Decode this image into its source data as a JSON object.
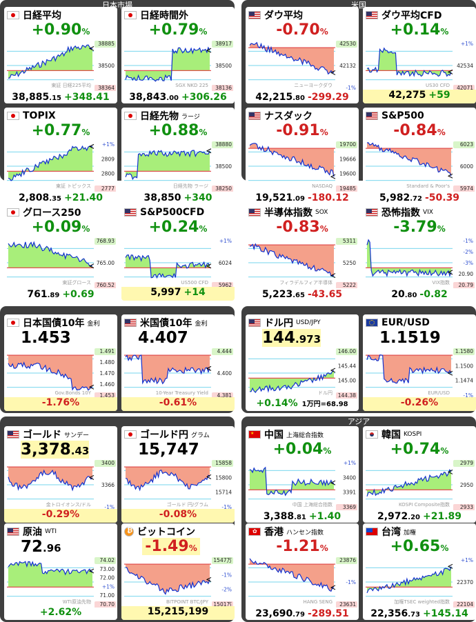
{
  "panels": [
    {
      "title": "日本市場"
    },
    {
      "title": "米国"
    },
    {
      "title": ""
    },
    {
      "title": ""
    },
    {
      "title": ""
    },
    {
      "title": "アジア"
    }
  ],
  "cards": [
    {
      "id": "nikkei",
      "flag": "jp",
      "name": "日経平均",
      "sub": "",
      "change": "+0.90",
      "unit": "%",
      "dir": "pos",
      "price_main": "38,885",
      "price_dec": ".15",
      "delta": "+348.41",
      "labels": [
        "38885",
        "38500",
        "38364"
      ],
      "watermark": "東証 日経225平均"
    },
    {
      "id": "nikkei-ah",
      "flag": "jp",
      "name": "日経時間外",
      "sub": "",
      "change": "+0.79",
      "unit": "%",
      "dir": "pos",
      "price_main": "38,843",
      "price_dec": ".00",
      "delta": "+306.26",
      "labels": [
        "38917",
        "38500",
        "38136"
      ],
      "watermark": "SGX NKD 225"
    },
    {
      "id": "dow",
      "flag": "us",
      "name": "ダウ平均",
      "sub": "",
      "change": "-0.70",
      "unit": "%",
      "dir": "neg",
      "price_main": "42,215",
      "price_dec": ".80",
      "delta": "-299.29",
      "labels": [
        "42530",
        "42132",
        "-1%"
      ],
      "watermark": "ニューヨークダウ"
    },
    {
      "id": "dow-cfd",
      "flag": "us",
      "name": "ダウ平均CFD",
      "sub": "",
      "change": "+0.14",
      "unit": "%",
      "dir": "pos",
      "price_main": "42,275",
      "price_dec": "",
      "delta": "+59",
      "labels": [
        "+1%",
        "42534",
        "42071"
      ],
      "watermark": "US30 CFD"
    },
    {
      "id": "topix",
      "flag": "jp",
      "name": "TOPIX",
      "sub": "",
      "change": "+0.77",
      "unit": "%",
      "dir": "pos",
      "price_main": "2,808",
      "price_dec": ".35",
      "delta": "+21.40",
      "labels": [
        "+1%",
        "2809",
        "2800",
        "2777"
      ],
      "watermark": "東証 トピックス"
    },
    {
      "id": "nikkei-fut",
      "flag": "jp",
      "name": "日経先物",
      "sub": "ラージ",
      "change": "+0.88",
      "unit": "%",
      "dir": "pos",
      "price_main": "38,850",
      "price_dec": "",
      "delta": "+340",
      "labels": [
        "38880",
        "38500",
        "38250"
      ],
      "watermark": "日経先物 ラージ"
    },
    {
      "id": "nasdaq",
      "flag": "us",
      "name": "ナスダック",
      "sub": "",
      "change": "-0.91",
      "unit": "%",
      "dir": "neg",
      "price_main": "19,521",
      "price_dec": ".09",
      "delta": "-180.12",
      "labels": [
        "19700",
        "19666",
        "19600",
        "19485"
      ],
      "watermark": "NASDAQ"
    },
    {
      "id": "sp500",
      "flag": "us",
      "name": "S&P500",
      "sub": "",
      "change": "-0.84",
      "unit": "%",
      "dir": "neg",
      "price_main": "5,982",
      "price_dec": ".72",
      "delta": "-50.39",
      "labels": [
        "6023",
        "6000",
        "5974"
      ],
      "watermark": "Standard & Poor's"
    },
    {
      "id": "growth",
      "flag": "jp",
      "name": "グロース250",
      "sub": "",
      "change": "+0.09",
      "unit": "%",
      "dir": "pos",
      "price_main": "761",
      "price_dec": ".89",
      "delta": "+0.69",
      "labels": [
        "768.93",
        "765.00",
        "760.52"
      ],
      "watermark": "東証グロース"
    },
    {
      "id": "sp500-cfd",
      "flag": "us",
      "name": "S&P500CFD",
      "sub": "",
      "change": "+0.24",
      "unit": "%",
      "dir": "pos",
      "price_main": "5,997",
      "price_dec": "",
      "delta": "+14",
      "labels": [
        "+1%",
        "6024",
        "5962"
      ],
      "watermark": "US500 CFD"
    },
    {
      "id": "sox",
      "flag": "us",
      "name": "半導体指数",
      "sub": "SOX",
      "change": "-0.83",
      "unit": "%",
      "dir": "neg",
      "price_main": "5,223",
      "price_dec": ".65",
      "delta": "-43.65",
      "labels": [
        "5311",
        "5250",
        "5222"
      ],
      "watermark": "フィラデルフィア半導体"
    },
    {
      "id": "vix",
      "flag": "us",
      "name": "恐怖指数",
      "sub": "VIX",
      "change": "-3.79",
      "unit": "%",
      "dir": "pos",
      "price_main": "20",
      "price_dec": ".80",
      "delta": "-0.82",
      "labels": [
        "-1%",
        "-2%",
        "-3%",
        "20.90",
        "20.79"
      ],
      "watermark": "VIX指数"
    },
    {
      "id": "jgb10",
      "flag": "jp",
      "name": "日本国債10年",
      "sub": "金利",
      "big": "1.453",
      "big_dec": "",
      "pct": "-1.76%",
      "dir": "neg",
      "labels": [
        "1.491",
        "1.480",
        "1.470",
        "1.460",
        "1.453"
      ],
      "watermark": "Gov.Bonds 10Y"
    },
    {
      "id": "ust10",
      "flag": "us",
      "name": "米国債10年",
      "sub": "金利",
      "big": "4.407",
      "big_dec": "",
      "pct": "-0.61%",
      "dir": "neg",
      "labels": [
        "4.444",
        "4.400",
        "4.381"
      ],
      "watermark": "10-Year Treasury Yield"
    },
    {
      "id": "usdjpy",
      "flag": "us",
      "name": "ドル円",
      "sub": "USD/JPY",
      "big": "144",
      "big_dec": ".973",
      "pct": "+0.14%",
      "dir": "pos",
      "note": "1万円=68.98",
      "labels": [
        "146.00",
        "145.44",
        "145.00",
        "144.38"
      ],
      "watermark": "ドル円"
    },
    {
      "id": "eurusd",
      "flag": "eu",
      "name": "EUR/USD",
      "sub": "",
      "big": "1.1519",
      "big_dec": "",
      "pct": "-0.26%",
      "dir": "neg",
      "labels": [
        "1.1580",
        "1.1500",
        "1.1474",
        "-1%"
      ],
      "watermark": "EUR/USD"
    },
    {
      "id": "gold",
      "flag": "us",
      "name": "ゴールド",
      "sub": "サンデー",
      "big": "3,378",
      "big_dec": ".43",
      "pct": "-0.29%",
      "dir": "neg",
      "labels": [
        "3400",
        "3366",
        "-1%"
      ],
      "watermark": "金トロイオンス/ドル"
    },
    {
      "id": "gold-jpy",
      "flag": "jp",
      "name": "ゴールド円",
      "sub": "グラム",
      "big": "15,747",
      "big_dec": "",
      "pct": "-0.08%",
      "dir": "neg",
      "labels": [
        "15858",
        "15800",
        "15714",
        "-1%"
      ],
      "watermark": "ゴールド 円/グラム"
    },
    {
      "id": "china",
      "flag": "cn",
      "name": "中国",
      "sub": "上海総合指数",
      "change": "+0.04",
      "unit": "%",
      "dir": "pos",
      "price_main": "3,388",
      "price_dec": ".81",
      "delta": "+1.40",
      "labels": [
        "+1%",
        "3400",
        "3391",
        "3369"
      ],
      "watermark": "中国 上海総合指数"
    },
    {
      "id": "korea",
      "flag": "kr",
      "name": "韓国",
      "sub": "KOSPI",
      "change": "+0.74",
      "unit": "%",
      "dir": "pos",
      "price_main": "2,972",
      "price_dec": ".20",
      "delta": "+21.89",
      "labels": [
        "2979",
        "2950",
        "2933"
      ],
      "watermark": "KOSPI Composite指数"
    },
    {
      "id": "oil",
      "flag": "us",
      "name": "原油",
      "sub": "WTI",
      "big": "72",
      "big_dec": ".96",
      "pct": "+2.62%",
      "dir": "pos",
      "labels": [
        "74.02",
        "73.00",
        "72.00",
        "+1%",
        "71.00",
        "70.70"
      ],
      "watermark": "WTI原油先物"
    },
    {
      "id": "bitcoin",
      "flag": "btc",
      "name": "ビットコイン",
      "sub": "",
      "change": "-1.49",
      "unit": "%",
      "dir": "neg",
      "price_main": "15,215,199",
      "price_dec": "",
      "delta": "",
      "labels": [
        "1547万",
        "-1%",
        "-2%",
        "1501万"
      ],
      "watermark": "BITPOINT BTC/JPY"
    },
    {
      "id": "hk",
      "flag": "hk",
      "name": "香港",
      "sub": "ハンセン指数",
      "change": "-1.21",
      "unit": "%",
      "dir": "neg",
      "price_main": "23,690",
      "price_dec": ".79",
      "delta": "-289.51",
      "labels": [
        "23876",
        "-1%",
        "23631"
      ],
      "watermark": "HANG SENG"
    },
    {
      "id": "taiwan",
      "flag": "tw",
      "name": "台湾",
      "sub": "加権",
      "change": "+0.65",
      "unit": "%",
      "dir": "pos",
      "price_main": "22,356",
      "price_dec": ".73",
      "delta": "+145.14",
      "labels": [
        "+1%",
        "22370",
        "22104"
      ],
      "watermark": "加権TSEC weighted指数"
    }
  ],
  "colors": {
    "pos": "#109010",
    "neg": "#d02020",
    "panel": "#3f3f3f",
    "fill_pos": "#a8ee7a",
    "fill_neg": "#f4a08a",
    "line": "#1030d0",
    "ref_line": "#e05050",
    "highlight": "#fff8b0"
  }
}
